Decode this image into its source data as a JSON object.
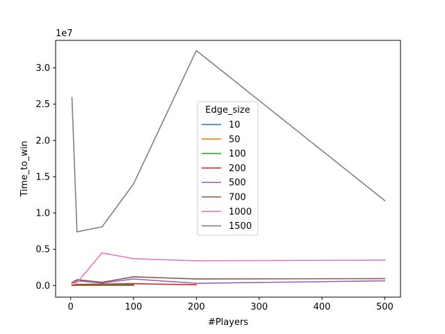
{
  "chart_data": {
    "type": "line",
    "title": "",
    "xlabel": "#Players",
    "ylabel": "Time_to_win",
    "y_offset_label": "1e7",
    "xlim": [
      -24,
      525
    ],
    "ylim": [
      -0.16,
      3.38
    ],
    "x_ticks": [
      0,
      100,
      200,
      300,
      400,
      500
    ],
    "x_tick_labels": [
      "0",
      "100",
      "200",
      "300",
      "400",
      "500"
    ],
    "y_ticks": [
      0.0,
      0.5,
      1.0,
      1.5,
      2.0,
      2.5,
      3.0
    ],
    "y_tick_labels": [
      "0.0",
      "0.5",
      "1.0",
      "1.5",
      "2.0",
      "2.5",
      "3.0"
    ],
    "y_unit_multiplier": 10000000,
    "grid": false,
    "legend": {
      "title": "Edge_size",
      "placement": "center"
    },
    "series": [
      {
        "name": "10",
        "color": "#1f77b4",
        "x": [
          2,
          10,
          50,
          100
        ],
        "y": [
          0.0005,
          0.0007,
          0.001,
          0.0015
        ]
      },
      {
        "name": "50",
        "color": "#ff7f0e",
        "x": [
          2,
          10,
          50,
          100
        ],
        "y": [
          0.001,
          0.004,
          0.005,
          0.01
        ]
      },
      {
        "name": "100",
        "color": "#2ca02c",
        "x": [
          2,
          10,
          50,
          100
        ],
        "y": [
          0.003,
          0.01,
          0.01,
          0.015
        ]
      },
      {
        "name": "200",
        "color": "#d62728",
        "x": [
          2,
          10,
          50,
          100,
          200
        ],
        "y": [
          0.005,
          0.015,
          0.02,
          0.025,
          0.01
        ]
      },
      {
        "name": "500",
        "color": "#9467bd",
        "x": [
          2,
          10,
          50,
          100,
          200,
          500
        ],
        "y": [
          0.03,
          0.065,
          0.035,
          0.09,
          0.03,
          0.065
        ]
      },
      {
        "name": "700",
        "color": "#8c564b",
        "x": [
          2,
          10,
          50,
          100,
          200,
          500
        ],
        "y": [
          0.04,
          0.08,
          0.045,
          0.12,
          0.09,
          0.095
        ]
      },
      {
        "name": "1000",
        "color": "#e377c2",
        "x": [
          2,
          10,
          50,
          100,
          200,
          500
        ],
        "y": [
          0.03,
          0.04,
          0.45,
          0.37,
          0.34,
          0.35
        ]
      },
      {
        "name": "1500",
        "color": "#7f7f7f",
        "x": [
          2,
          10,
          50,
          100,
          200,
          500
        ],
        "y": [
          2.59,
          0.74,
          0.81,
          1.4,
          3.24,
          1.17
        ]
      }
    ]
  }
}
